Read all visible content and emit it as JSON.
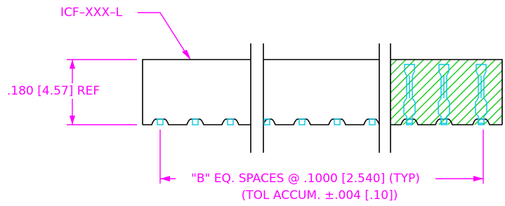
{
  "part_label": "ICF–XXX–L",
  "height_dimension": ".180 [4.57] REF",
  "spacing_note": {
    "line1": "\"B\" EQ. SPACES @ .1000 [2.540] (TYP)",
    "line2": "(TOL ACCUM. ±.004 [.10])"
  }
}
